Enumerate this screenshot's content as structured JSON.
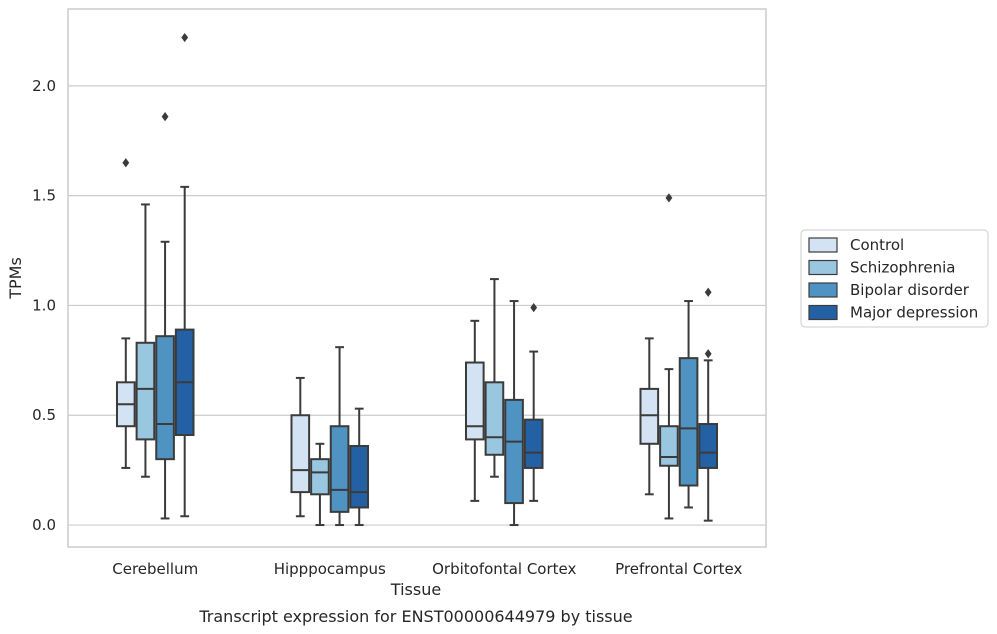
{
  "chart_data": {
    "type": "box",
    "title": "",
    "xlabel": "Tissue",
    "ylabel": "TPMs",
    "caption": "Transcript expression for ENST00000644979 by tissue",
    "categories": [
      "Cerebellum",
      "Hipppocampus",
      "Orbitofontal Cortex",
      "Prefrontal Cortex"
    ],
    "ylim": [
      -0.1,
      2.35
    ],
    "yticks": [
      "0.0",
      "0.5",
      "1.0",
      "1.5",
      "2.0"
    ],
    "ytick_values": [
      0.0,
      0.5,
      1.0,
      1.5,
      2.0
    ],
    "grid": "horizontal",
    "legend_position": "right",
    "series": [
      {
        "name": "Control",
        "color": "#d3e3f3",
        "boxes": [
          {
            "whislo": 0.26,
            "q1": 0.45,
            "med": 0.55,
            "q3": 0.65,
            "whishi": 0.85,
            "fliers": [
              1.65
            ]
          },
          {
            "whislo": 0.04,
            "q1": 0.15,
            "med": 0.25,
            "q3": 0.5,
            "whishi": 0.67,
            "fliers": []
          },
          {
            "whislo": 0.11,
            "q1": 0.39,
            "med": 0.45,
            "q3": 0.74,
            "whishi": 0.93,
            "fliers": []
          },
          {
            "whislo": 0.14,
            "q1": 0.37,
            "med": 0.5,
            "q3": 0.62,
            "whishi": 0.85,
            "fliers": []
          }
        ]
      },
      {
        "name": "Schizophrenia",
        "color": "#9ac7e0",
        "boxes": [
          {
            "whislo": 0.22,
            "q1": 0.39,
            "med": 0.62,
            "q3": 0.83,
            "whishi": 1.46,
            "fliers": []
          },
          {
            "whislo": 0.0,
            "q1": 0.14,
            "med": 0.24,
            "q3": 0.3,
            "whishi": 0.37,
            "fliers": []
          },
          {
            "whislo": 0.22,
            "q1": 0.32,
            "med": 0.4,
            "q3": 0.65,
            "whishi": 1.12,
            "fliers": []
          },
          {
            "whislo": 0.03,
            "q1": 0.27,
            "med": 0.31,
            "q3": 0.45,
            "whishi": 0.71,
            "fliers": [
              1.49
            ]
          }
        ]
      },
      {
        "name": "Bipolar disorder",
        "color": "#4f93c2",
        "boxes": [
          {
            "whislo": 0.03,
            "q1": 0.3,
            "med": 0.46,
            "q3": 0.86,
            "whishi": 1.29,
            "fliers": [
              1.86
            ]
          },
          {
            "whislo": 0.0,
            "q1": 0.06,
            "med": 0.16,
            "q3": 0.45,
            "whishi": 0.81,
            "fliers": []
          },
          {
            "whislo": 0.0,
            "q1": 0.1,
            "med": 0.38,
            "q3": 0.57,
            "whishi": 1.02,
            "fliers": []
          },
          {
            "whislo": 0.08,
            "q1": 0.18,
            "med": 0.44,
            "q3": 0.76,
            "whishi": 1.02,
            "fliers": []
          }
        ]
      },
      {
        "name": "Major depression",
        "color": "#2361a4",
        "boxes": [
          {
            "whislo": 0.04,
            "q1": 0.41,
            "med": 0.65,
            "q3": 0.89,
            "whishi": 1.54,
            "fliers": [
              2.22
            ]
          },
          {
            "whislo": 0.0,
            "q1": 0.08,
            "med": 0.15,
            "q3": 0.36,
            "whishi": 0.53,
            "fliers": []
          },
          {
            "whislo": 0.11,
            "q1": 0.26,
            "med": 0.33,
            "q3": 0.48,
            "whishi": 0.79,
            "fliers": [
              0.99
            ]
          },
          {
            "whislo": 0.02,
            "q1": 0.26,
            "med": 0.33,
            "q3": 0.46,
            "whishi": 0.75,
            "fliers": [
              0.78,
              1.06
            ]
          }
        ]
      }
    ]
  }
}
